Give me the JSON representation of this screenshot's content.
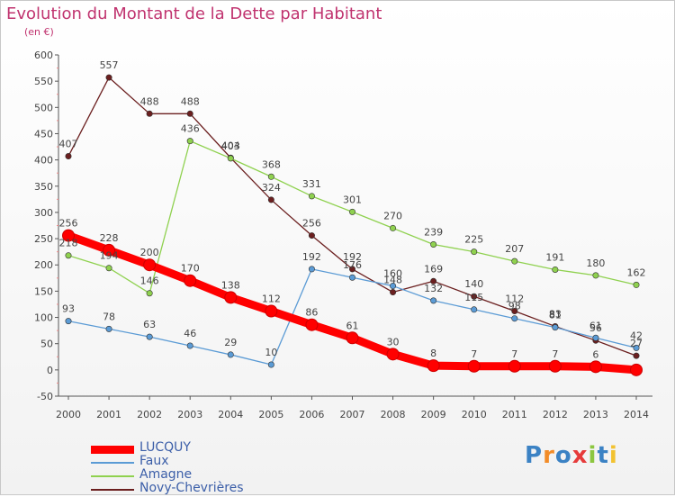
{
  "title": "Evolution du Montant de la Dette par Habitant",
  "subtitle": "(en €)",
  "chart_data": {
    "type": "line",
    "title": "Evolution du Montant de la Dette par Habitant",
    "ylabel": "(en €)",
    "xlabel": "",
    "ylim": [
      -50,
      600
    ],
    "yticks": [
      -50,
      0,
      50,
      100,
      150,
      200,
      250,
      300,
      350,
      400,
      450,
      500,
      550,
      600
    ],
    "categories": [
      "2000",
      "2001",
      "2002",
      "2003",
      "2004",
      "2005",
      "2006",
      "2007",
      "2008",
      "2009",
      "2010",
      "2011",
      "2012",
      "2013",
      "2014"
    ],
    "grid": false,
    "legend_position": "bottom-left",
    "series": [
      {
        "name": "LUCQUY",
        "color": "#ff0000",
        "values": [
          256,
          228,
          200,
          170,
          138,
          112,
          86,
          61,
          30,
          8,
          7,
          7,
          7,
          6,
          0
        ],
        "labels": [
          "256",
          "228",
          "200",
          "170",
          "138",
          "112",
          "86",
          "61",
          "30",
          "8",
          "7",
          "7",
          "7",
          "6",
          ""
        ]
      },
      {
        "name": "Faux",
        "color": "#5b9bd5",
        "values": [
          93,
          78,
          63,
          46,
          29,
          10,
          192,
          176,
          160,
          132,
          115,
          98,
          81,
          61,
          42
        ],
        "labels": [
          "93",
          "78",
          "63",
          "46",
          "29",
          "10",
          "192",
          "176",
          "160",
          "132",
          "115",
          "98",
          "81",
          "61",
          "42"
        ],
        "label_dy": [
          -10,
          -10,
          -10,
          -10,
          -10,
          -10,
          -10,
          -10,
          -10,
          -10,
          -10,
          -10,
          -10,
          -10,
          -10
        ]
      },
      {
        "name": "Amagne",
        "color": "#8fd14f",
        "values": [
          218,
          194,
          146,
          436,
          403,
          368,
          331,
          301,
          270,
          239,
          225,
          207,
          191,
          180,
          162
        ],
        "labels": [
          "218",
          "194",
          "146",
          "436",
          "403",
          "368",
          "331",
          "301",
          "270",
          "239",
          "225",
          "207",
          "191",
          "180",
          "162"
        ]
      },
      {
        "name": "Novy-Chevrières",
        "color": "#6b1f1f",
        "values": [
          407,
          557,
          488,
          488,
          404,
          324,
          256,
          192,
          148,
          169,
          140,
          112,
          83,
          56,
          27
        ],
        "labels": [
          "407",
          "557",
          "488",
          "488",
          "404",
          "324",
          "256",
          "192",
          "148",
          "169",
          "140",
          "112",
          "83",
          "56",
          "27"
        ]
      }
    ]
  },
  "legend": [
    {
      "label": "LUCQUY",
      "color": "#ff0000"
    },
    {
      "label": "Faux",
      "color": "#5b9bd5"
    },
    {
      "label": "Amagne",
      "color": "#8fd14f"
    },
    {
      "label": "Novy-Chevrières",
      "color": "#6b1f1f"
    }
  ],
  "logo": {
    "text": "Proxiti",
    "letters": [
      {
        "char": "P",
        "color": "#3b82c4"
      },
      {
        "char": "r",
        "color": "#f28c28"
      },
      {
        "char": "o",
        "color": "#3b82c4"
      },
      {
        "char": "x",
        "color": "#e63b3b"
      },
      {
        "char": "i",
        "color": "#8cc63f"
      },
      {
        "char": "t",
        "color": "#3b82c4"
      },
      {
        "char": "i",
        "color": "#f2c230"
      }
    ]
  }
}
